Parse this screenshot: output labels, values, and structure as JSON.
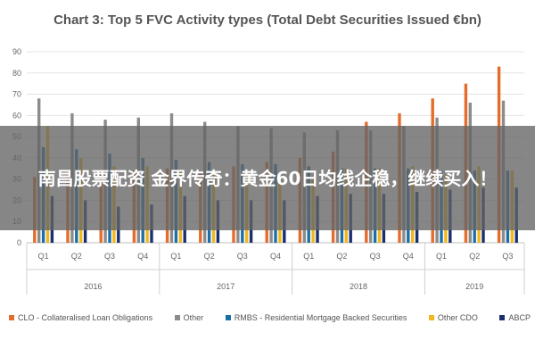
{
  "overlay": {
    "text": "南昌股票配资 金界传奇：黄金60日均线企稳，继续买入！"
  },
  "chart_data": {
    "type": "bar",
    "title": "Chart 3: Top 5 FVC Activity types (Total Debt Securities Issued €bn)",
    "xlabel": "",
    "ylabel": "",
    "ylim": [
      0,
      90
    ],
    "yticks": [
      0,
      10,
      20,
      30,
      40,
      50,
      60,
      70,
      80,
      90
    ],
    "grid": true,
    "legend_position": "bottom",
    "categories": [
      "Q1",
      "Q2",
      "Q3",
      "Q4",
      "Q1",
      "Q2",
      "Q3",
      "Q4",
      "Q1",
      "Q2",
      "Q3",
      "Q4",
      "Q1",
      "Q2",
      "Q3"
    ],
    "years": [
      {
        "label": "2016",
        "span": 4
      },
      {
        "label": "2017",
        "span": 4
      },
      {
        "label": "2018",
        "span": 4
      },
      {
        "label": "2019",
        "span": 3
      }
    ],
    "series": [
      {
        "name": "CLO - Collateralised Loan Obligations",
        "color": "#e46c2c",
        "values": [
          31,
          32,
          33,
          34,
          35,
          33,
          36,
          38,
          40,
          43,
          57,
          61,
          68,
          75,
          83
        ]
      },
      {
        "name": "Other",
        "color": "#8c8c8c",
        "values": [
          68,
          61,
          58,
          59,
          61,
          57,
          55,
          54,
          52,
          53,
          53,
          55,
          59,
          66,
          67
        ]
      },
      {
        "name": "RMBS - Residential Mortgage Backed Securities",
        "color": "#1b6fa8",
        "values": [
          45,
          44,
          42,
          40,
          39,
          38,
          37,
          37,
          36,
          35,
          35,
          35,
          34,
          34,
          34
        ]
      },
      {
        "name": "Other CDO",
        "color": "#f2b71c",
        "values": [
          55,
          40,
          36,
          36,
          34,
          33,
          32,
          33,
          31,
          35,
          35,
          36,
          32,
          36,
          34
        ]
      },
      {
        "name": "ABCP",
        "color": "#1a2f6e",
        "values": [
          22,
          20,
          17,
          18,
          22,
          20,
          20,
          20,
          22,
          23,
          23,
          24,
          25,
          26,
          26
        ]
      }
    ]
  }
}
